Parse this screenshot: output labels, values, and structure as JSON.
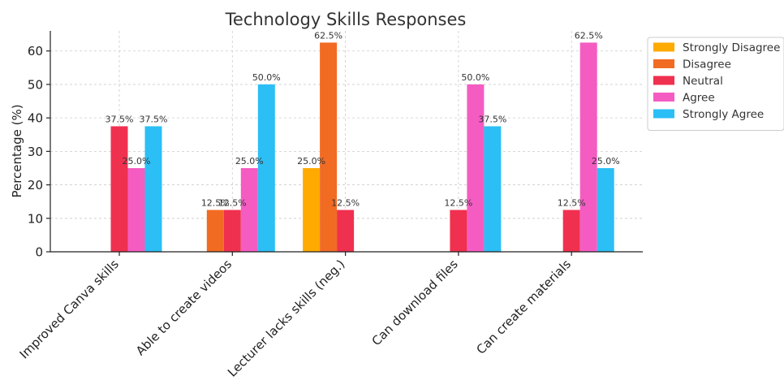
{
  "chart_data": {
    "type": "bar",
    "title": "Technology Skills Responses",
    "xlabel": "",
    "ylabel": "Percentage (%)",
    "ylim": [
      0,
      66
    ],
    "yticks": [
      0,
      10,
      20,
      30,
      40,
      50,
      60
    ],
    "grid": true,
    "legend_position": "right",
    "categories": [
      "Improved Canva skills",
      "Able to create videos",
      "Lecturer lacks skills (neg.)",
      "Can download files",
      "Can create materials"
    ],
    "series": [
      {
        "name": "Strongly Disagree",
        "color": "#FFAA00",
        "values": [
          0,
          0,
          25.0,
          0,
          0
        ]
      },
      {
        "name": "Disagree",
        "color": "#F26B22",
        "values": [
          0,
          12.5,
          62.5,
          0,
          0
        ]
      },
      {
        "name": "Neutral",
        "color": "#F0304F",
        "values": [
          37.5,
          12.5,
          12.5,
          12.5,
          12.5
        ]
      },
      {
        "name": "Agree",
        "color": "#F55CC2",
        "values": [
          25.0,
          25.0,
          0,
          50.0,
          62.5
        ]
      },
      {
        "name": "Strongly Agree",
        "color": "#2BBFF5",
        "values": [
          37.5,
          50.0,
          0,
          37.5,
          25.0
        ]
      }
    ]
  }
}
